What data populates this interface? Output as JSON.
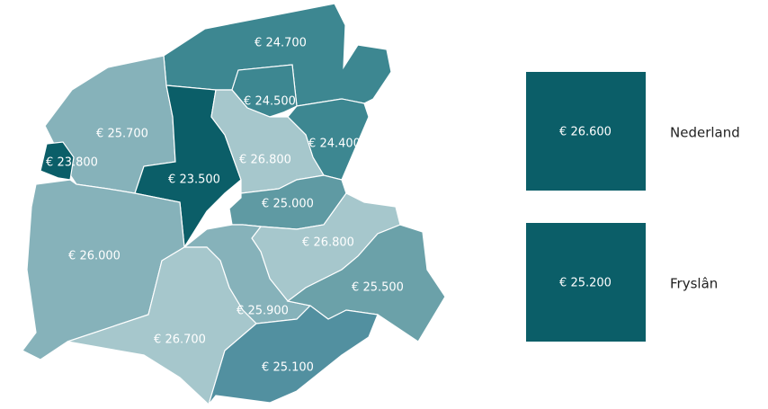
{
  "regions": [
    {
      "label": "€ 24.700",
      "color": "#3d8791"
    },
    {
      "label": "€ 24.500",
      "color": "#3d8791"
    },
    {
      "label": "€ 24.400",
      "color": "#3d8791"
    },
    {
      "label": "€ 25.700",
      "color": "#86b2ba"
    },
    {
      "label": "€ 23.800",
      "color": "#0b5e68"
    },
    {
      "label": "€ 23.500",
      "color": "#0b5e68"
    },
    {
      "label": "€ 26.800",
      "color": "#a6c7cc"
    },
    {
      "label": "€ 25.000",
      "color": "#5f9aa3"
    },
    {
      "label": "€ 26.000",
      "color": "#86b2ba"
    },
    {
      "label": "€ 26.800",
      "color": "#a6c7cc"
    },
    {
      "label": "€ 25.900",
      "color": "#86b2ba"
    },
    {
      "label": "€ 25.500",
      "color": "#6ba1a9"
    },
    {
      "label": "€ 26.700",
      "color": "#a6c7cc"
    },
    {
      "label": "€ 25.100",
      "color": "#5290a0"
    }
  ],
  "legend": [
    {
      "label": "€ 26.600",
      "name": "Nederland",
      "color": "#0b5e68"
    },
    {
      "label": "€ 25.200",
      "name": "Fryslân",
      "color": "#0b5e68"
    }
  ]
}
